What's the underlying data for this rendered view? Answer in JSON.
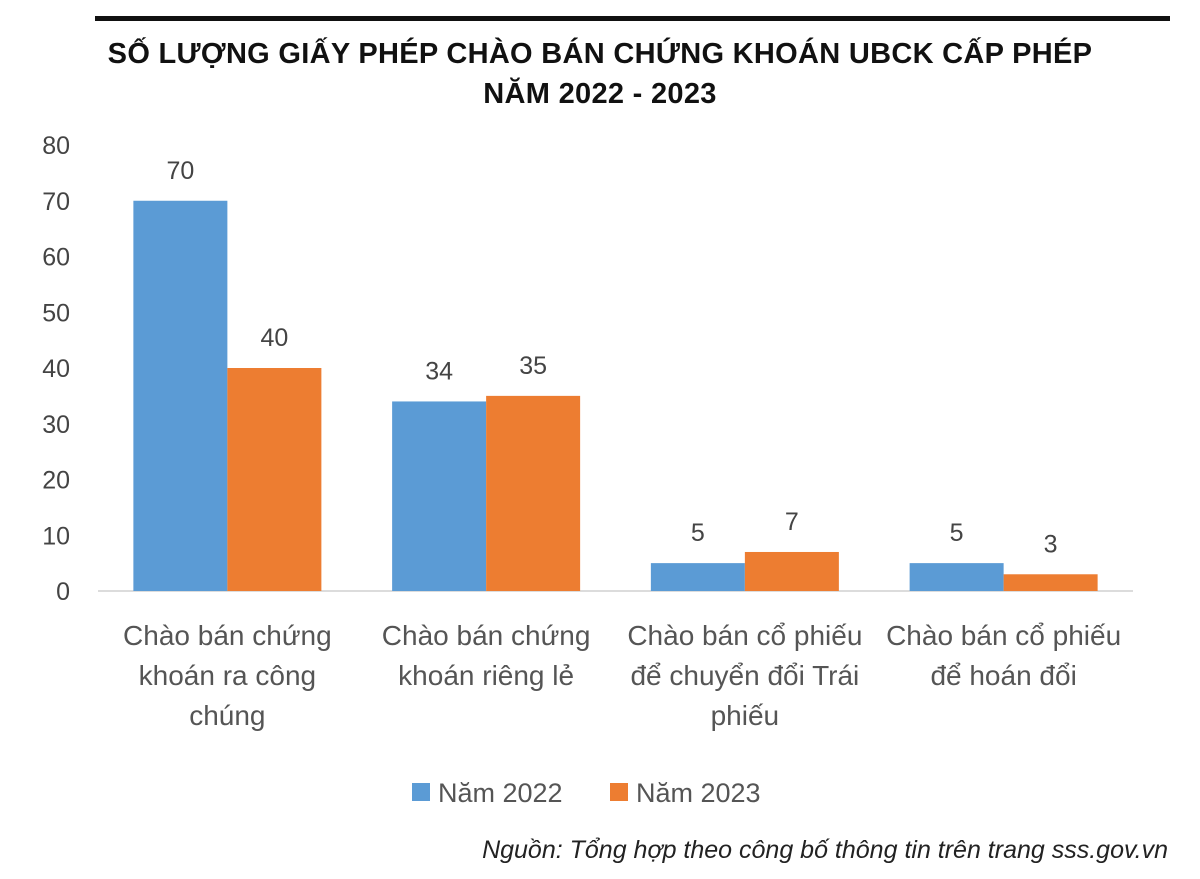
{
  "chart_data": {
    "type": "bar",
    "title": [
      "SỐ LƯỢNG GIẤY PHÉP CHÀO BÁN CHỨNG KHOÁN UBCK CẤP PHÉP",
      "NĂM 2022 - 2023"
    ],
    "categories": [
      [
        "Chào bán chứng",
        "khoán ra công",
        "chúng"
      ],
      [
        "Chào bán chứng",
        "khoán riêng lẻ"
      ],
      [
        "Chào bán cổ phiếu",
        "để chuyển đổi Trái",
        "phiếu"
      ],
      [
        "Chào bán cổ phiếu",
        "để hoán đổi"
      ]
    ],
    "series": [
      {
        "name": "Năm 2022",
        "color": "#5B9BD5",
        "values": [
          70,
          34,
          5,
          5
        ]
      },
      {
        "name": "Năm 2023",
        "color": "#ED7D31",
        "values": [
          40,
          35,
          7,
          3
        ]
      }
    ],
    "ylim": [
      0,
      80
    ],
    "yticks": [
      0,
      10,
      20,
      30,
      40,
      50,
      60,
      70,
      80
    ],
    "grid": false,
    "legend": "bottom",
    "data_labels": true
  },
  "source": "Nguồn: Tổng hợp theo công bố thông tin trên trang sss.gov.vn"
}
